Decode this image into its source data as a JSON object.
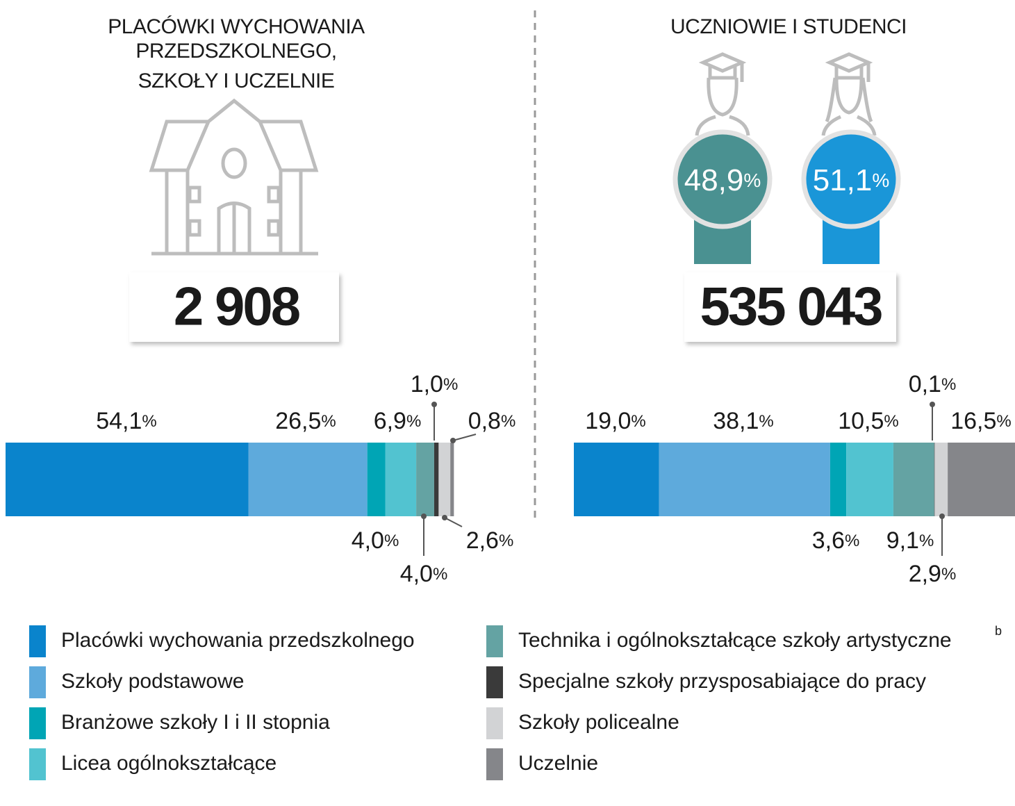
{
  "chart_data": [
    {
      "type": "stacked_bar",
      "title": [
        "PLACÓWKI WYCHOWANIA",
        "PRZEDSZKOLNEGO,",
        "SZKOŁY I UCZELNIE"
      ],
      "total": "2 908",
      "values": [
        54.1,
        26.5,
        4.0,
        6.9,
        4.0,
        1.0,
        2.6,
        0.8
      ],
      "value_labels": [
        "54,1%",
        "26,5%",
        "4,0%",
        "6,9%",
        "4,0%",
        "1,0%",
        "2,6%",
        "0,8%"
      ]
    },
    {
      "type": "stacked_bar",
      "title": [
        "UCZNIOWIE I STUDENCI"
      ],
      "total": "535 043",
      "gender": [
        {
          "value": 48.9,
          "label": "48,9%",
          "color": "#4a9191"
        },
        {
          "value": 51.1,
          "label": "51,1%",
          "color": "#1a96d8"
        }
      ],
      "values": [
        19.0,
        38.1,
        3.6,
        10.5,
        9.1,
        0.1,
        2.9,
        16.5
      ],
      "value_labels": [
        "19,0%",
        "38,1%",
        "3,6%",
        "10,5%",
        "9,1%",
        "0,1%",
        "2,9%",
        "16,5%"
      ]
    }
  ],
  "legend": {
    "items": [
      {
        "name": "Placówki wychowania przedszkolnego",
        "color": "#0a84cc"
      },
      {
        "name": "Szkoły podstawowe",
        "color": "#5eaadc"
      },
      {
        "name": "Branżowe szkoły I i II stopnia",
        "color": "#00a5b5"
      },
      {
        "name": "Licea ogólnokształcące",
        "color": "#52c3d0"
      },
      {
        "name": "Technika i ogólnokształcące szkoły artystyczne",
        "superscript": "b",
        "color": "#64a3a3"
      },
      {
        "name": "Specjalne szkoły przysposabiające do pracy",
        "color": "#3a3a3a"
      },
      {
        "name": "Szkoły policealne",
        "color": "#d2d3d5"
      },
      {
        "name": "Uczelnie",
        "color": "#85868a"
      }
    ]
  }
}
